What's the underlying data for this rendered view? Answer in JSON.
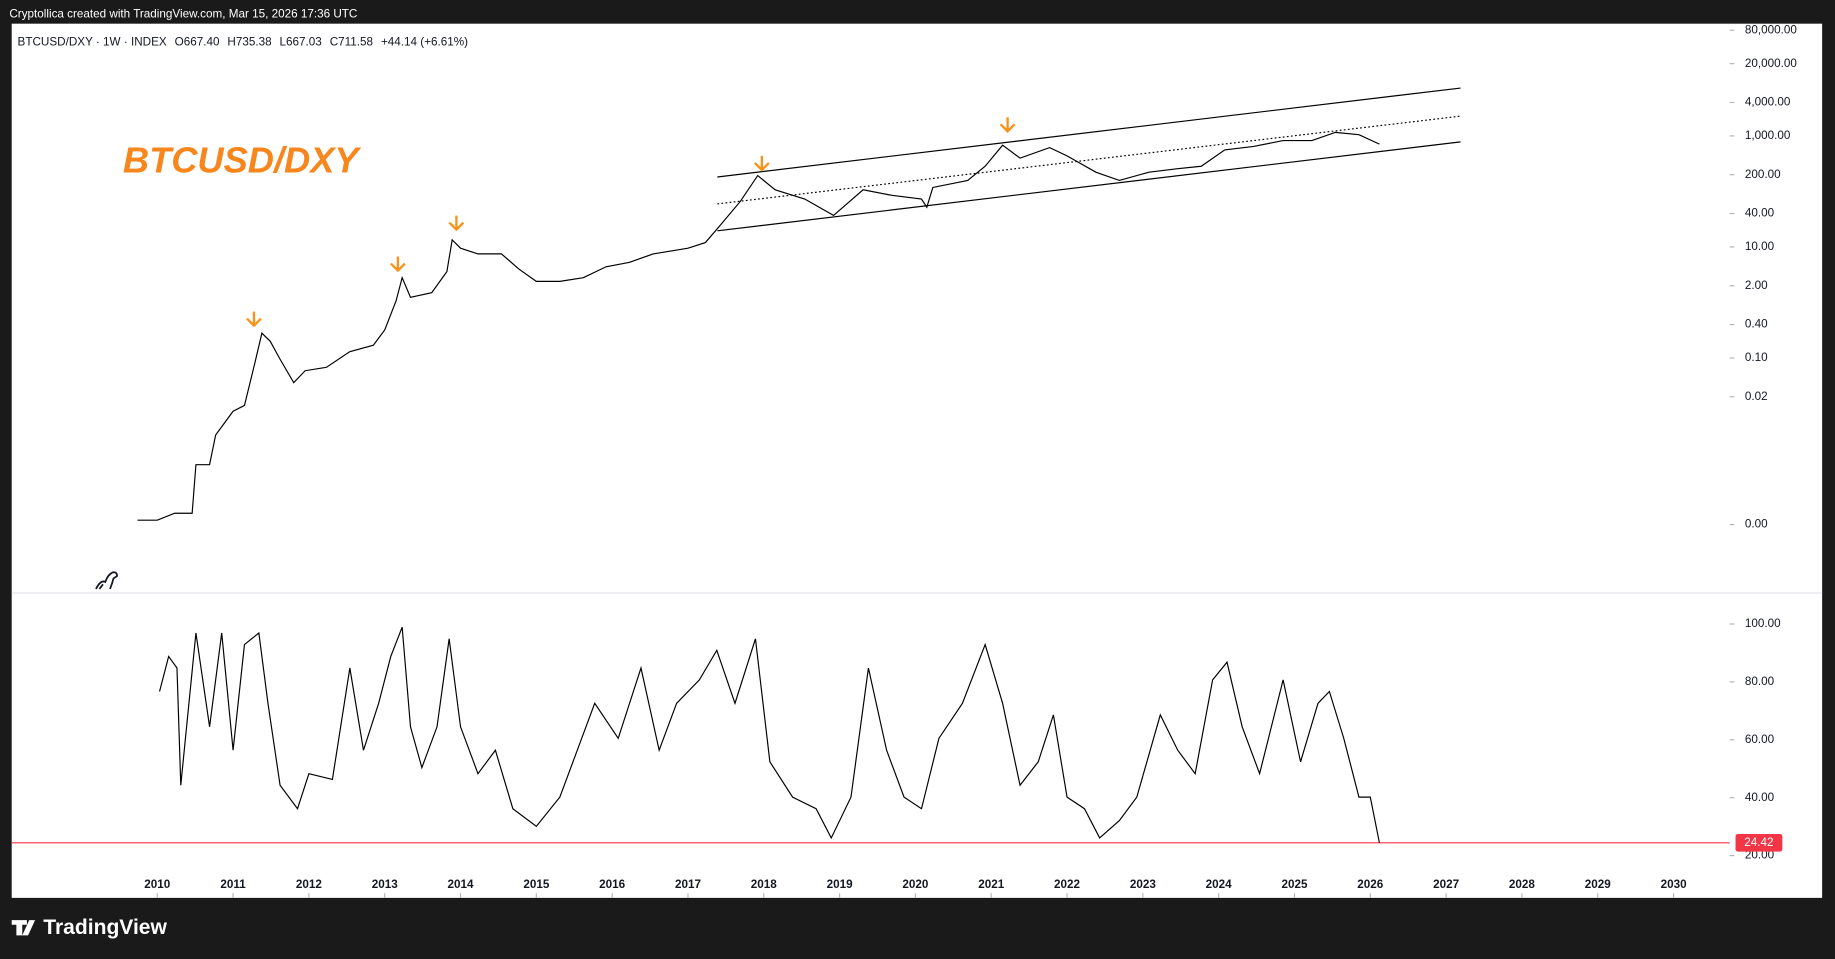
{
  "header": {
    "credit": "Cryptollica created with TradingView.com, Mar 15, 2026 17:36 UTC",
    "brand": "TradingView"
  },
  "chart_data": [
    {
      "type": "line",
      "symbol": "BTCUSD/DXY · 1W · INDEX",
      "ohlc": [
        "O667.40",
        "H735.38",
        "L667.03",
        "C711.58"
      ],
      "change": "+44.14 (+6.61%)",
      "annotation": "BTCUSD/DXY",
      "annotation_color": "#f7861d",
      "log_scale": true,
      "color": "#000000",
      "x": [
        2009.74,
        2010.0,
        2010.23,
        2010.46,
        2010.51,
        2010.69,
        2010.77,
        2011.0,
        2011.15,
        2011.28,
        2011.38,
        2011.49,
        2011.62,
        2011.8,
        2011.95,
        2012.23,
        2012.54,
        2012.85,
        2013.0,
        2013.15,
        2013.23,
        2013.34,
        2013.62,
        2013.82,
        2013.89,
        2014.0,
        2014.23,
        2014.54,
        2014.77,
        2015.0,
        2015.31,
        2015.62,
        2015.92,
        2016.23,
        2016.54,
        2017.0,
        2017.23,
        2017.43,
        2017.69,
        2017.92,
        2018.15,
        2018.54,
        2018.92,
        2019.31,
        2019.69,
        2020.08,
        2020.15,
        2020.23,
        2020.69,
        2020.92,
        2021.15,
        2021.38,
        2021.77,
        2022.0,
        2022.38,
        2022.69,
        2023.08,
        2023.46,
        2023.77,
        2024.08,
        2024.46,
        2024.85,
        2025.23,
        2025.54,
        2025.85,
        2026.12
      ],
      "values": [
        0.00012,
        0.00012,
        0.00016,
        0.00016,
        0.0012,
        0.0012,
        0.0041,
        0.011,
        0.014,
        0.074,
        0.28,
        0.2,
        0.095,
        0.036,
        0.059,
        0.068,
        0.13,
        0.17,
        0.32,
        1.07,
        2.8,
        1.24,
        1.5,
        3.6,
        13.4,
        9.5,
        7.5,
        7.5,
        4.0,
        2.4,
        2.4,
        2.8,
        4.4,
        5.3,
        7.5,
        9.5,
        12,
        25,
        66,
        193,
        107,
        73,
        37,
        107,
        85,
        73,
        52,
        118,
        158,
        284,
        680,
        398,
        616,
        437,
        222,
        158,
        222,
        257,
        284,
        560,
        646,
        824,
        824,
        1157,
        1050,
        712
      ],
      "xlim": [
        2008.08,
        2030.74
      ],
      "ylim": [
        6e-06,
        105000
      ],
      "yticks": [
        {
          "value": 0.0001,
          "label": "0.00"
        },
        0.02,
        {
          "value": 0.1,
          "label": "0.10"
        },
        {
          "value": 0.4,
          "label": "0.40"
        },
        {
          "value": 2,
          "label": "2.00"
        },
        {
          "value": 10,
          "label": "10.00"
        },
        {
          "value": 40,
          "label": "40.00"
        },
        {
          "value": 200,
          "label": "200.00"
        },
        {
          "value": 1000,
          "label": "1,000.00"
        },
        {
          "value": 4000,
          "label": "4,000.00"
        },
        {
          "value": 20000,
          "label": "20,000.00"
        },
        {
          "value": 80000,
          "label": "80,000.00"
        }
      ]
    },
    {
      "type": "line",
      "color": "#000000",
      "level_color": "#f23645",
      "x": [
        2010.03,
        2010.15,
        2010.26,
        2010.31,
        2010.51,
        2010.69,
        2010.85,
        2011.0,
        2011.15,
        2011.34,
        2011.46,
        2011.62,
        2011.85,
        2012.0,
        2012.31,
        2012.54,
        2012.72,
        2012.92,
        2013.08,
        2013.23,
        2013.34,
        2013.49,
        2013.69,
        2013.85,
        2014.0,
        2014.23,
        2014.46,
        2014.69,
        2015.0,
        2015.31,
        2015.54,
        2015.77,
        2016.08,
        2016.38,
        2016.62,
        2016.85,
        2017.15,
        2017.38,
        2017.62,
        2017.89,
        2018.08,
        2018.38,
        2018.69,
        2018.89,
        2019.15,
        2019.38,
        2019.62,
        2019.85,
        2020.08,
        2020.31,
        2020.62,
        2020.92,
        2021.15,
        2021.38,
        2021.62,
        2021.82,
        2022.0,
        2022.23,
        2022.43,
        2022.69,
        2022.92,
        2023.23,
        2023.46,
        2023.69,
        2023.92,
        2024.11,
        2024.31,
        2024.54,
        2024.85,
        2025.08,
        2025.31,
        2025.46,
        2025.65,
        2025.85,
        2026.0,
        2026.12
      ],
      "values": [
        76.7,
        88.8,
        84.8,
        44.3,
        96.9,
        64.5,
        96.9,
        56.4,
        92.9,
        96.9,
        72.6,
        44.3,
        36.2,
        48.3,
        46.3,
        84.8,
        56.4,
        72.6,
        88.8,
        98.9,
        64.5,
        50.4,
        64.5,
        94.9,
        64.5,
        48.3,
        56.4,
        36.2,
        30.1,
        40.2,
        56.4,
        72.6,
        60.5,
        84.8,
        56.4,
        72.6,
        80.7,
        90.9,
        72.6,
        94.9,
        52.4,
        40.2,
        36.2,
        26.1,
        40.2,
        84.8,
        56.4,
        40.2,
        36.2,
        60.5,
        72.6,
        92.9,
        72.6,
        44.3,
        52.4,
        68.6,
        40.2,
        36.2,
        26.1,
        32.1,
        40.2,
        68.6,
        56.4,
        48.3,
        80.7,
        86.8,
        64.5,
        48.3,
        80.7,
        52.4,
        72.6,
        76.7,
        60.5,
        40.2,
        40.2,
        24.42
      ],
      "xlim": [
        2008.08,
        2030.74
      ],
      "ylim": [
        5.4,
        110.5
      ],
      "xticks": [
        2010,
        2011,
        2012,
        2013,
        2014,
        2015,
        2016,
        2017,
        2018,
        2019,
        2020,
        2021,
        2022,
        2023,
        2024,
        2025,
        2026,
        2027,
        2028,
        2029,
        2030
      ],
      "yticks": [
        {
          "value": 20,
          "label": "20.00"
        },
        {
          "value": 40,
          "label": "40.00"
        },
        {
          "value": 60,
          "label": "60.00"
        },
        {
          "value": 80,
          "label": "80.00"
        },
        {
          "value": 100,
          "label": "100.00"
        }
      ]
    }
  ]
}
